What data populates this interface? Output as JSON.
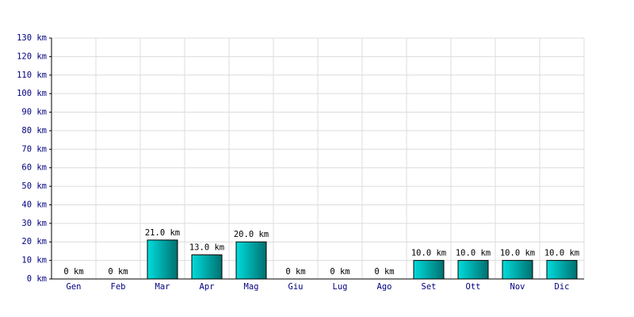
{
  "chart_data": {
    "type": "bar",
    "categories": [
      "Gen",
      "Feb",
      "Mar",
      "Apr",
      "Mag",
      "Giu",
      "Lug",
      "Ago",
      "Set",
      "Ott",
      "Nov",
      "Dic"
    ],
    "values": [
      0,
      0,
      21,
      13,
      20,
      0,
      0,
      0,
      10,
      10,
      10,
      10
    ],
    "value_labels": [
      "0 km",
      "0 km",
      "21.0 km",
      "13.0 km",
      "20.0 km",
      "0 km",
      "0 km",
      "0 km",
      "10.0 km",
      "10.0 km",
      "10.0 km",
      "10.0 km"
    ],
    "color": "#00dcdc",
    "ylim": [
      0,
      130
    ],
    "yticks": [
      {
        "value": 0,
        "label": "0 km"
      },
      {
        "value": 10,
        "label": "10 km"
      },
      {
        "value": 20,
        "label": "20 km"
      },
      {
        "value": 30,
        "label": "30 km"
      },
      {
        "value": 40,
        "label": "40 km"
      },
      {
        "value": 50,
        "label": "50 km"
      },
      {
        "value": 60,
        "label": "60 km"
      },
      {
        "value": 70,
        "label": "70 km"
      },
      {
        "value": 80,
        "label": "80 km"
      },
      {
        "value": 90,
        "label": "90 km"
      },
      {
        "value": 100,
        "label": "100 km"
      },
      {
        "value": 110,
        "label": "110 km"
      },
      {
        "value": 120,
        "label": "120 km"
      },
      {
        "value": 130,
        "label": "130 km"
      }
    ],
    "grid": true
  }
}
